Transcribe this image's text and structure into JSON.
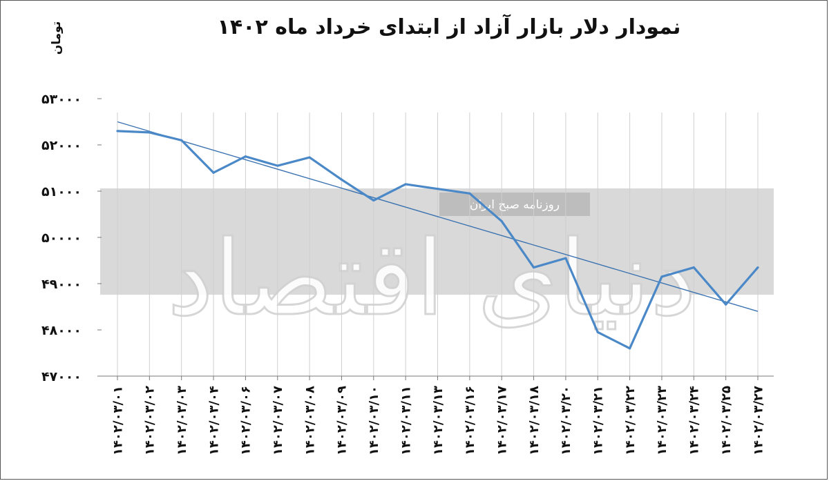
{
  "watermark": {
    "brand": "دنیای اقتصاد",
    "tagline": "روزنامه صبح ایران"
  },
  "chart_data": {
    "type": "line",
    "title": "نمودار دلار بازار آزاد از ابتدای خرداد ماه ۱۴۰۲",
    "ylabel": "تومان",
    "xlabel": "",
    "ylim": [
      47000,
      53000
    ],
    "yticks": [
      47000,
      48000,
      49000,
      50000,
      51000,
      52000,
      53000
    ],
    "ytick_labels": [
      "۴۷۰۰۰",
      "۴۸۰۰۰",
      "۴۹۰۰۰",
      "۵۰۰۰۰",
      "۵۱۰۰۰",
      "۵۲۰۰۰",
      "۵۳۰۰۰"
    ],
    "categories": [
      "۱۴۰۲/۰۳/۰۱",
      "۱۴۰۲/۰۳/۰۲",
      "۱۴۰۲/۰۳/۰۳",
      "۱۴۰۲/۰۳/۰۴",
      "۱۴۰۲/۰۳/۰۶",
      "۱۴۰۲/۰۳/۰۷",
      "۱۴۰۲/۰۳/۰۸",
      "۱۴۰۲/۰۳/۰۹",
      "۱۴۰۲/۰۳/۱۰",
      "۱۴۰۲/۰۳/۱۱",
      "۱۴۰۲/۰۳/۱۳",
      "۱۴۰۲/۰۳/۱۶",
      "۱۴۰۲/۰۳/۱۷",
      "۱۴۰۲/۰۳/۱۸",
      "۱۴۰۲/۰۳/۲۰",
      "۱۴۰۲/۰۳/۲۱",
      "۱۴۰۲/۰۳/۲۲",
      "۱۴۰۲/۰۳/۲۳",
      "۱۴۰۲/۰۳/۲۴",
      "۱۴۰۲/۰۳/۲۵",
      "۱۴۰۲/۰۳/۲۷"
    ],
    "series": [
      {
        "values": [
          52300,
          52270,
          52100,
          51400,
          51750,
          51550,
          51730,
          51250,
          50800,
          51150,
          51050,
          50950,
          50350,
          49350,
          49550,
          47950,
          47600,
          49150,
          49350,
          48550,
          49350
        ]
      }
    ],
    "trendline": {
      "start": 52500,
      "end": 48400
    },
    "grid": {
      "vertical": true,
      "horizontal": false
    },
    "legend": "none",
    "colors": {
      "line": "#4a88c7",
      "trend": "#3a72b0",
      "grid": "#cfcfcf",
      "band": "#d9d9d9"
    }
  }
}
